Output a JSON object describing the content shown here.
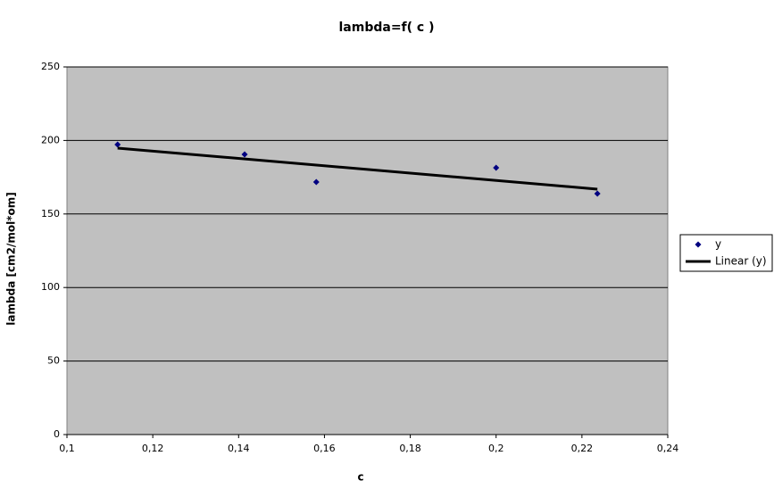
{
  "chart_data": {
    "type": "scatter",
    "title": "lambda=f( c )",
    "x_label": "c",
    "y_label": "lambda [cm2/mol*om]",
    "series": [
      {
        "name": "y",
        "type": "scatter",
        "color": "#000080",
        "x": [
          0.1118,
          0.1414,
          0.1581,
          0.2,
          0.2236
        ],
        "values": [
          197.2,
          190.5,
          171.7,
          181.4,
          163.8
        ]
      },
      {
        "name": "Linear (y)",
        "type": "line",
        "color": "#000000",
        "x": [
          0.1118,
          0.2236
        ],
        "values": [
          194.8,
          166.9
        ]
      }
    ],
    "xlim": [
      0.1,
      0.24
    ],
    "xticks": [
      {
        "value": 0.1,
        "label": "0,1"
      },
      {
        "value": 0.12,
        "label": "0,12"
      },
      {
        "value": 0.14,
        "label": "0,14"
      },
      {
        "value": 0.16,
        "label": "0,16"
      },
      {
        "value": 0.18,
        "label": "0,18"
      },
      {
        "value": 0.2,
        "label": "0,2"
      },
      {
        "value": 0.22,
        "label": "0,22"
      },
      {
        "value": 0.24,
        "label": "0,24"
      }
    ],
    "ylim": [
      0,
      250
    ],
    "yticks": [
      0,
      50,
      100,
      150,
      200,
      250
    ],
    "grid": true,
    "legend": "right",
    "plot_background": "#c0c0c0"
  }
}
